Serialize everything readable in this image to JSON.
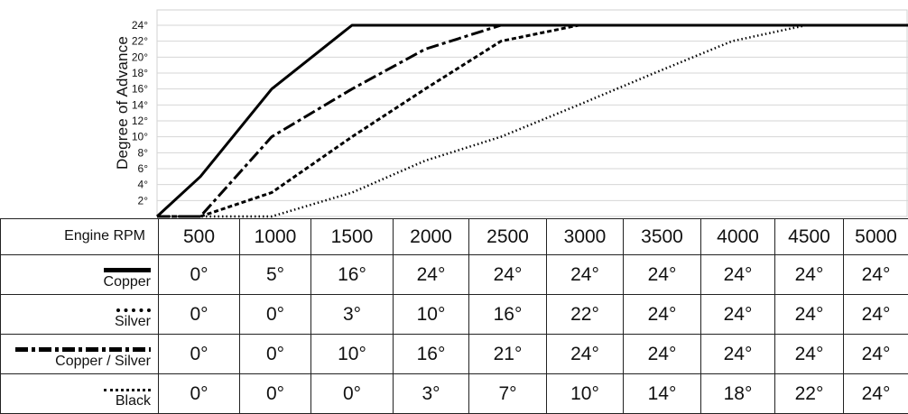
{
  "chart_data": {
    "type": "line",
    "ylabel": "Degree of Advance",
    "yticks": [
      "2°",
      "4°",
      "6°",
      "8°",
      "10°",
      "12°",
      "14°",
      "16°",
      "18°",
      "20°",
      "22°",
      "24°"
    ],
    "ylim": [
      0,
      24
    ],
    "x": [
      500,
      1000,
      1500,
      2000,
      2500,
      3000,
      3500,
      4000,
      4500,
      5000
    ],
    "xlabel": "Engine RPM",
    "grid": true,
    "series": [
      {
        "name": "Copper",
        "style": "solid",
        "values": [
          0,
          5,
          16,
          24,
          24,
          24,
          24,
          24,
          24,
          24
        ]
      },
      {
        "name": "Silver",
        "style": "dashed",
        "values": [
          0,
          0,
          3,
          10,
          16,
          22,
          24,
          24,
          24,
          24
        ]
      },
      {
        "name": "Copper / Silver",
        "style": "dash-dot",
        "values": [
          0,
          0,
          10,
          16,
          21,
          24,
          24,
          24,
          24,
          24
        ]
      },
      {
        "name": "Black",
        "style": "dotted",
        "values": [
          0,
          0,
          0,
          3,
          7,
          10,
          14,
          18,
          22,
          24
        ]
      }
    ]
  },
  "table": {
    "header_label": "Engine RPM",
    "columns": [
      "500",
      "1000",
      "1500",
      "2000",
      "2500",
      "3000",
      "3500",
      "4000",
      "4500",
      "5000"
    ],
    "rows": [
      {
        "label": "Copper",
        "swatch": "solid",
        "cells": [
          "0°",
          "5°",
          "16°",
          "24°",
          "24°",
          "24°",
          "24°",
          "24°",
          "24°",
          "24°"
        ]
      },
      {
        "label": "Silver",
        "swatch": "dotted",
        "cells": [
          "0°",
          "0°",
          "3°",
          "10°",
          "16°",
          "22°",
          "24°",
          "24°",
          "24°",
          "24°"
        ]
      },
      {
        "label": "Copper / Silver",
        "swatch": "dashdot",
        "cells": [
          "0°",
          "0°",
          "10°",
          "16°",
          "21°",
          "24°",
          "24°",
          "24°",
          "24°",
          "24°"
        ]
      },
      {
        "label": "Black",
        "swatch": "fine",
        "cells": [
          "0°",
          "0°",
          "0°",
          "3°",
          "7°",
          "10°",
          "14°",
          "18°",
          "22°",
          "24°"
        ]
      }
    ]
  }
}
